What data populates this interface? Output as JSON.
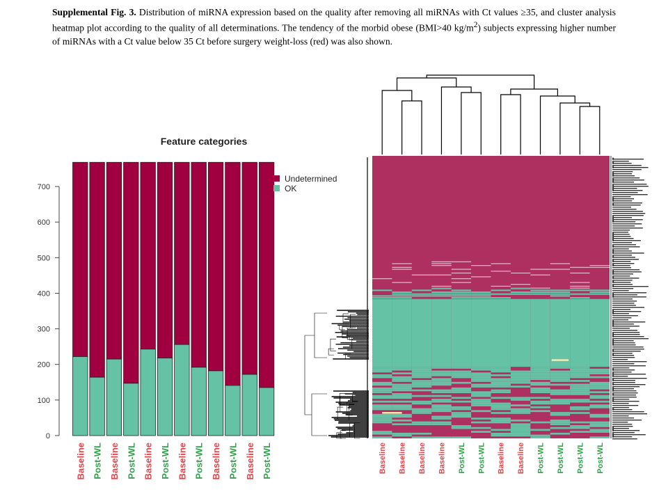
{
  "caption": {
    "label": "Supplemental Fig. 3.",
    "text_before_sup": " Distribution of miRNA expression based on the quality after removing all miRNAs with Ct values ≥35, and cluster analysis heatmap plot according to the quality of all determinations. The tendency of the morbid obese (BMI>40 kg/m",
    "sup": "2",
    "text_after_sup": ") subjects expressing higher number of miRNAs with a Ct value below 35 Ct before surgery weight-loss (red) was also shown."
  },
  "colors": {
    "undetermined": "#a0003f",
    "ok": "#66c2a5",
    "heat_undetermined": "#ad3060",
    "baseline_label": "#e0474c",
    "postwl_label": "#33a14c",
    "heat_highlight": "#f5f0b0"
  },
  "chart_data": [
    {
      "type": "bar",
      "stacked": true,
      "title": "Feature categories",
      "categories": [
        "Baseline",
        "Post-WL",
        "Baseline",
        "Post-WL",
        "Baseline",
        "Post-WL",
        "Baseline",
        "Post-WL",
        "Baseline",
        "Post-WL",
        "Baseline",
        "Post-WL"
      ],
      "series": [
        {
          "name": "OK",
          "values": [
            222,
            164,
            215,
            147,
            243,
            218,
            256,
            192,
            182,
            141,
            172,
            135
          ]
        },
        {
          "name": "Undetermined",
          "values": [
            546,
            604,
            553,
            621,
            525,
            550,
            512,
            576,
            586,
            627,
            596,
            633
          ]
        }
      ],
      "yticks": [
        0,
        100,
        200,
        300,
        400,
        500,
        600,
        700
      ],
      "ylim": [
        0,
        768
      ],
      "legend_position": "top-right",
      "grid": false
    },
    {
      "type": "heatmap",
      "categories": [
        "Baseline",
        "Baseline",
        "Baseline",
        "Baseline",
        "Post-WL",
        "Post-WL",
        "Baseline",
        "Baseline",
        "Post-WL",
        "Post-WL",
        "Post-WL",
        "Post-WL"
      ],
      "ok_rows_per_column": [
        172,
        141,
        147,
        182,
        164,
        135,
        141,
        172,
        164,
        135,
        141,
        164
      ],
      "dendrogram": "hierarchical clustering on columns and rows",
      "grid": false
    }
  ]
}
